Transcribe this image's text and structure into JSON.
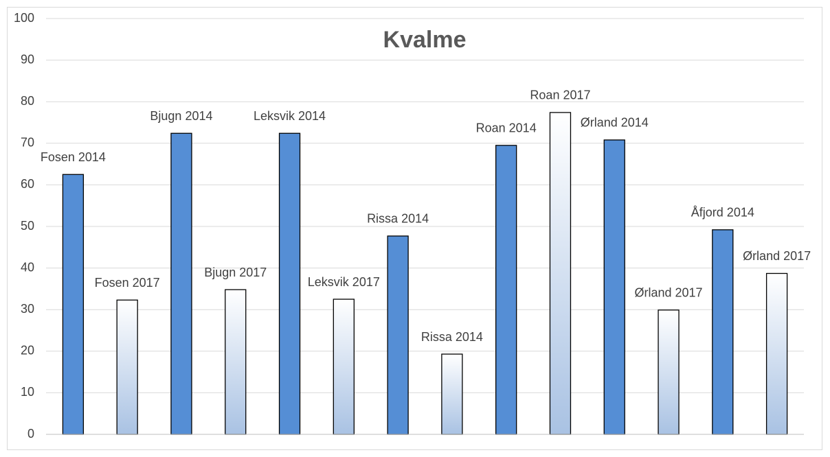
{
  "chart_data": {
    "type": "bar",
    "title": "Kvalme",
    "categories": [
      "Fosen 2014",
      "Fosen 2017",
      "Bjugn 2014",
      "Bjugn 2017",
      "Leksvik 2014",
      "Leksvik 2017",
      "Rissa 2014",
      "Rissa 2014",
      "Roan 2014",
      "Roan 2017",
      "Ørland 2014",
      "Ørland 2017",
      "Åfjord 2014",
      "Ørland 2017"
    ],
    "values": [
      62.5,
      32.3,
      72.4,
      34.8,
      72.4,
      32.5,
      47.7,
      19.3,
      69.5,
      77.4,
      70.8,
      29.9,
      49.2,
      38.7
    ],
    "colors": [
      "#558ed5",
      {
        "from": "#ffffff",
        "to": "#a9c2e3"
      },
      "#558ed5",
      {
        "from": "#ffffff",
        "to": "#a9c2e3"
      },
      "#558ed5",
      {
        "from": "#ffffff",
        "to": "#a9c2e3"
      },
      "#558ed5",
      {
        "from": "#ffffff",
        "to": "#a9c2e3"
      },
      "#558ed5",
      {
        "from": "#ffffff",
        "to": "#a9c2e3"
      },
      "#558ed5",
      {
        "from": "#ffffff",
        "to": "#a9c2e3"
      },
      "#558ed5",
      {
        "from": "#ffffff",
        "to": "#a9c2e3"
      }
    ],
    "ylim": [
      0,
      100
    ],
    "yticks": [
      0,
      10,
      20,
      30,
      40,
      50,
      60,
      70,
      80,
      90,
      100
    ],
    "grid": true
  }
}
